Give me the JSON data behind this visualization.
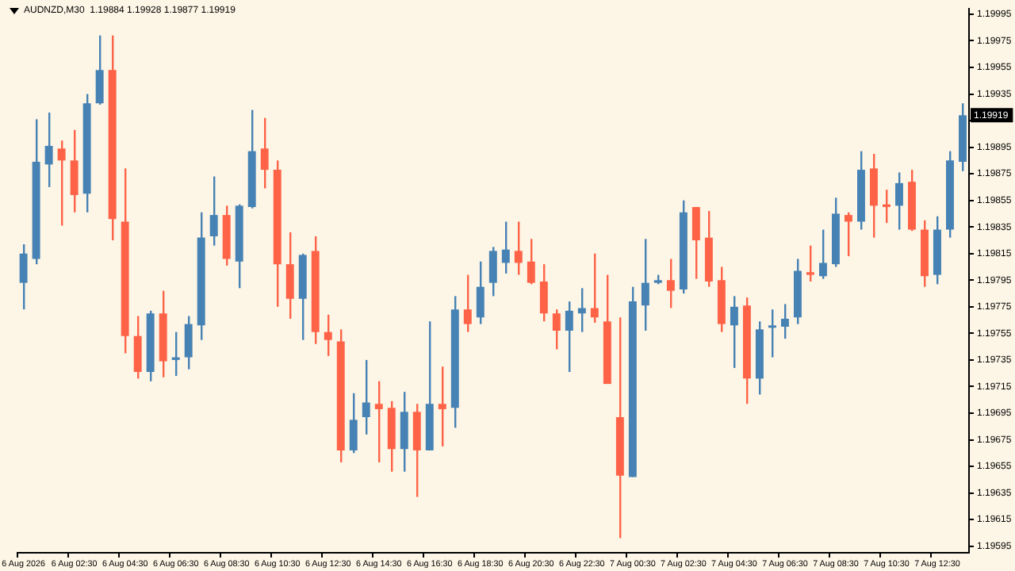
{
  "chart_data": {
    "type": "candlestick",
    "title": "AUDNZD,M30  1.19884 1.19928 1.19877 1.19919",
    "categories": [
      "6 Aug 2026",
      null,
      null,
      null,
      "6 Aug 02:30",
      null,
      null,
      null,
      "6 Aug 04:30",
      null,
      null,
      null,
      "6 Aug 06:30",
      null,
      null,
      null,
      "6 Aug 08:30",
      null,
      null,
      null,
      "6 Aug 10:30",
      null,
      null,
      null,
      "6 Aug 12:30",
      null,
      null,
      null,
      "6 Aug 14:30",
      null,
      null,
      null,
      "6 Aug 16:30",
      null,
      null,
      null,
      "6 Aug 18:30",
      null,
      null,
      null,
      "6 Aug 20:30",
      null,
      null,
      null,
      "6 Aug 22:30",
      null,
      null,
      null,
      "7 Aug 00:30",
      null,
      null,
      null,
      "7 Aug 02:30",
      null,
      null,
      null,
      "7 Aug 04:30",
      null,
      null,
      null,
      "7 Aug 06:30",
      null,
      null,
      null,
      "7 Aug 08:30",
      null,
      null,
      null,
      "7 Aug 10:30",
      null,
      null,
      null,
      "7 Aug 12:30",
      null,
      null
    ],
    "ohlc": [
      [
        1.19793,
        1.19822,
        1.19773,
        1.19815
      ],
      [
        1.19811,
        1.19916,
        1.19807,
        1.19884
      ],
      [
        1.19882,
        1.19921,
        1.19865,
        1.19896
      ],
      [
        1.19894,
        1.199,
        1.19836,
        1.19885
      ],
      [
        1.19885,
        1.19908,
        1.19846,
        1.19859
      ],
      [
        1.1986,
        1.19935,
        1.19846,
        1.19928
      ],
      [
        1.19928,
        1.19979,
        1.19927,
        1.19953
      ],
      [
        1.19953,
        1.19979,
        1.19825,
        1.19841
      ],
      [
        1.19839,
        1.19879,
        1.1974,
        1.19753
      ],
      [
        1.19753,
        1.19768,
        1.19721,
        1.19726
      ],
      [
        1.19726,
        1.19772,
        1.19719,
        1.1977
      ],
      [
        1.1977,
        1.19787,
        1.19722,
        1.19734
      ],
      [
        1.19735,
        1.19756,
        1.19723,
        1.19737
      ],
      [
        1.19737,
        1.19768,
        1.19728,
        1.19762
      ],
      [
        1.19761,
        1.19846,
        1.1975,
        1.19827
      ],
      [
        1.19828,
        1.19873,
        1.19821,
        1.19844
      ],
      [
        1.19844,
        1.19851,
        1.19806,
        1.19811
      ],
      [
        1.19809,
        1.19852,
        1.19789,
        1.19851
      ],
      [
        1.1985,
        1.19923,
        1.19849,
        1.19892
      ],
      [
        1.19894,
        1.19917,
        1.19864,
        1.19878
      ],
      [
        1.19878,
        1.19885,
        1.19775,
        1.19807
      ],
      [
        1.19807,
        1.19831,
        1.19766,
        1.19781
      ],
      [
        1.19781,
        1.19815,
        1.1975,
        1.19814
      ],
      [
        1.19817,
        1.19828,
        1.19747,
        1.19756
      ],
      [
        1.19756,
        1.19769,
        1.19738,
        1.1975
      ],
      [
        1.19749,
        1.19758,
        1.19658,
        1.19667
      ],
      [
        1.19667,
        1.1971,
        1.19665,
        1.1969
      ],
      [
        1.19692,
        1.19735,
        1.19679,
        1.19703
      ],
      [
        1.19702,
        1.19719,
        1.19658,
        1.19698
      ],
      [
        1.19699,
        1.19704,
        1.19651,
        1.19668
      ],
      [
        1.19668,
        1.19711,
        1.19651,
        1.19696
      ],
      [
        1.19696,
        1.19702,
        1.19632,
        1.19667
      ],
      [
        1.19667,
        1.19764,
        1.19667,
        1.19702
      ],
      [
        1.19702,
        1.1973,
        1.1967,
        1.19698
      ],
      [
        1.19699,
        1.19783,
        1.19684,
        1.19773
      ],
      [
        1.19773,
        1.19799,
        1.19756,
        1.19762
      ],
      [
        1.19767,
        1.19809,
        1.19762,
        1.1979
      ],
      [
        1.19793,
        1.1982,
        1.19783,
        1.19817
      ],
      [
        1.19808,
        1.19839,
        1.198,
        1.19818
      ],
      [
        1.19817,
        1.19839,
        1.19799,
        1.19808
      ],
      [
        1.19809,
        1.19826,
        1.19792,
        1.19793
      ],
      [
        1.19794,
        1.19807,
        1.19764,
        1.1977
      ],
      [
        1.1977,
        1.19773,
        1.19743,
        1.19757
      ],
      [
        1.19757,
        1.19779,
        1.19726,
        1.19772
      ],
      [
        1.1977,
        1.19789,
        1.19756,
        1.19774
      ],
      [
        1.19774,
        1.19815,
        1.19763,
        1.19767
      ],
      [
        1.19764,
        1.19799,
        1.19717,
        1.19717
      ],
      [
        1.19692,
        1.19767,
        1.19601,
        1.19648
      ],
      [
        1.19647,
        1.1979,
        1.19647,
        1.19779
      ],
      [
        1.19776,
        1.19826,
        1.19757,
        1.19793
      ],
      [
        1.19793,
        1.19799,
        1.19792,
        1.19795
      ],
      [
        1.19795,
        1.19811,
        1.19774,
        1.19787
      ],
      [
        1.19788,
        1.19855,
        1.19785,
        1.19846
      ],
      [
        1.1985,
        1.1985,
        1.19796,
        1.19825
      ],
      [
        1.19827,
        1.19847,
        1.1979,
        1.19794
      ],
      [
        1.19795,
        1.19805,
        1.19756,
        1.19762
      ],
      [
        1.19761,
        1.19783,
        1.19729,
        1.19775
      ],
      [
        1.19776,
        1.19782,
        1.19702,
        1.19721
      ],
      [
        1.19721,
        1.19764,
        1.19709,
        1.19758
      ],
      [
        1.1976,
        1.19773,
        1.19737,
        1.19761
      ],
      [
        1.1976,
        1.19777,
        1.19751,
        1.19766
      ],
      [
        1.19767,
        1.19811,
        1.19762,
        1.19802
      ],
      [
        1.19801,
        1.19821,
        1.19794,
        1.19799
      ],
      [
        1.19798,
        1.19833,
        1.19796,
        1.19808
      ],
      [
        1.19807,
        1.19857,
        1.19805,
        1.19845
      ],
      [
        1.19844,
        1.19846,
        1.19813,
        1.19839
      ],
      [
        1.19839,
        1.19892,
        1.19833,
        1.19878
      ],
      [
        1.19879,
        1.1989,
        1.19827,
        1.19851
      ],
      [
        1.19852,
        1.19863,
        1.19838,
        1.1985
      ],
      [
        1.19851,
        1.19876,
        1.19833,
        1.19868
      ],
      [
        1.19869,
        1.19878,
        1.19832,
        1.19833
      ],
      [
        1.19833,
        1.1984,
        1.1979,
        1.19798
      ],
      [
        1.19799,
        1.19843,
        1.19792,
        1.19833
      ],
      [
        1.19833,
        1.19892,
        1.19827,
        1.19885
      ],
      [
        1.19884,
        1.19928,
        1.19877,
        1.19919
      ]
    ],
    "colors": [
      "#4682b4",
      "#4682b4",
      "#4682b4",
      "#ff6347",
      "#ff6347",
      "#4682b4",
      "#4682b4",
      "#ff6347",
      "#ff6347",
      "#ff6347",
      "#4682b4",
      "#ff6347",
      "#4682b4",
      "#4682b4",
      "#4682b4",
      "#4682b4",
      "#ff6347",
      "#4682b4",
      "#4682b4",
      "#ff6347",
      "#ff6347",
      "#ff6347",
      "#4682b4",
      "#ff6347",
      "#ff6347",
      "#ff6347",
      "#4682b4",
      "#4682b4",
      "#ff6347",
      "#ff6347",
      "#4682b4",
      "#ff6347",
      "#4682b4",
      "#ff6347",
      "#4682b4",
      "#ff6347",
      "#4682b4",
      "#4682b4",
      "#4682b4",
      "#ff6347",
      "#ff6347",
      "#ff6347",
      "#ff6347",
      "#4682b4",
      "#4682b4",
      "#ff6347",
      "#ff6347",
      "#ff6347",
      "#4682b4",
      "#4682b4",
      "#4682b4",
      "#ff6347",
      "#4682b4",
      "#ff6347",
      "#ff6347",
      "#ff6347",
      "#4682b4",
      "#ff6347",
      "#4682b4",
      "#4682b4",
      "#4682b4",
      "#4682b4",
      "#ff6347",
      "#4682b4",
      "#4682b4",
      "#ff6347",
      "#4682b4",
      "#ff6347",
      "#ff6347",
      "#4682b4",
      "#ff6347",
      "#ff6347",
      "#4682b4",
      "#4682b4",
      "#4682b4"
    ],
    "ylim": [
      1.1959,
      1.19999
    ],
    "yticks": [
      1.19595,
      1.19615,
      1.19635,
      1.19655,
      1.19675,
      1.19695,
      1.19715,
      1.19735,
      1.19755,
      1.19775,
      1.19795,
      1.19815,
      1.19835,
      1.19855,
      1.19875,
      1.19895,
      {
        "value": 1.19915,
        "label": null
      },
      1.19935,
      1.19955,
      1.19975,
      1.19995
    ],
    "annotations": [
      {
        "text": "1.19919",
        "y": 1.19919
      }
    ]
  }
}
